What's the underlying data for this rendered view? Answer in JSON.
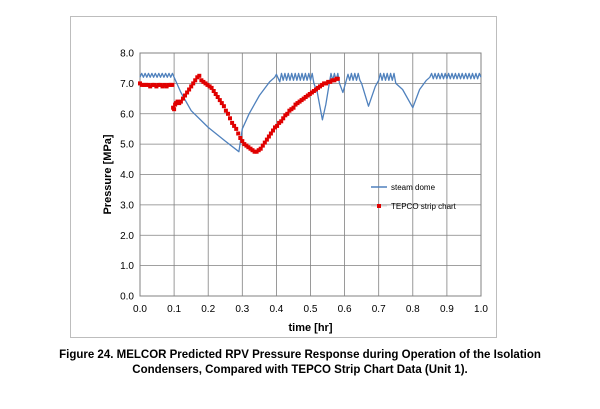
{
  "chart_data": {
    "type": "line",
    "xlabel": "time [hr]",
    "ylabel": "Pressure [MPa]",
    "xlim": [
      0.0,
      1.0
    ],
    "ylim": [
      0.0,
      8.0
    ],
    "xticks": [
      "0.0",
      "0.1",
      "0.2",
      "0.3",
      "0.4",
      "0.5",
      "0.6",
      "0.7",
      "0.8",
      "0.9",
      "1.0"
    ],
    "yticks": [
      "0.0",
      "1.0",
      "2.0",
      "3.0",
      "4.0",
      "5.0",
      "6.0",
      "7.0",
      "8.0"
    ],
    "grid": true,
    "legend_position": "center-right",
    "series": [
      {
        "name": "steam dome",
        "style": "line",
        "color": "#4f81bd",
        "x": [
          0.0,
          0.005,
          0.01,
          0.015,
          0.02,
          0.025,
          0.03,
          0.035,
          0.04,
          0.045,
          0.05,
          0.055,
          0.06,
          0.065,
          0.07,
          0.075,
          0.08,
          0.085,
          0.09,
          0.095,
          0.1,
          0.12,
          0.15,
          0.2,
          0.25,
          0.29,
          0.3,
          0.32,
          0.35,
          0.38,
          0.395,
          0.4,
          0.41,
          0.415,
          0.42,
          0.425,
          0.43,
          0.435,
          0.44,
          0.445,
          0.45,
          0.455,
          0.46,
          0.465,
          0.47,
          0.475,
          0.48,
          0.485,
          0.49,
          0.495,
          0.5,
          0.505,
          0.51,
          0.52,
          0.535,
          0.545,
          0.555,
          0.56,
          0.565,
          0.57,
          0.575,
          0.58,
          0.585,
          0.59,
          0.595,
          0.6,
          0.605,
          0.61,
          0.615,
          0.62,
          0.625,
          0.63,
          0.635,
          0.64,
          0.645,
          0.65,
          0.67,
          0.69,
          0.7,
          0.705,
          0.71,
          0.715,
          0.72,
          0.725,
          0.73,
          0.735,
          0.74,
          0.745,
          0.75,
          0.77,
          0.8,
          0.82,
          0.84,
          0.85,
          0.855,
          0.86,
          0.865,
          0.87,
          0.875,
          0.88,
          0.885,
          0.89,
          0.895,
          0.9,
          0.905,
          0.91,
          0.915,
          0.92,
          0.925,
          0.93,
          0.935,
          0.94,
          0.945,
          0.95,
          0.955,
          0.96,
          0.965,
          0.97,
          0.975,
          0.98,
          0.985,
          0.99,
          0.995,
          1.0
        ],
        "y": [
          7.2,
          7.33,
          7.2,
          7.33,
          7.2,
          7.33,
          7.2,
          7.33,
          7.2,
          7.33,
          7.2,
          7.33,
          7.2,
          7.33,
          7.2,
          7.33,
          7.2,
          7.33,
          7.2,
          7.33,
          7.2,
          6.7,
          6.1,
          5.55,
          5.1,
          4.75,
          5.5,
          6.0,
          6.6,
          7.05,
          7.2,
          7.3,
          7.05,
          7.33,
          7.1,
          7.33,
          7.1,
          7.33,
          7.1,
          7.33,
          7.1,
          7.33,
          7.1,
          7.33,
          7.1,
          7.33,
          7.1,
          7.33,
          7.1,
          7.33,
          7.1,
          7.33,
          7.0,
          6.7,
          5.8,
          6.3,
          7.0,
          7.33,
          7.1,
          7.33,
          7.1,
          7.33,
          7.0,
          6.85,
          6.7,
          6.9,
          7.1,
          7.3,
          7.1,
          7.33,
          7.1,
          7.33,
          7.1,
          7.33,
          7.1,
          7.0,
          6.25,
          6.9,
          7.1,
          7.33,
          7.1,
          7.33,
          7.1,
          7.33,
          7.1,
          7.33,
          7.1,
          7.33,
          7.0,
          6.8,
          6.2,
          6.8,
          7.1,
          7.2,
          7.33,
          7.15,
          7.33,
          7.15,
          7.33,
          7.15,
          7.33,
          7.15,
          7.33,
          7.15,
          7.33,
          7.15,
          7.33,
          7.15,
          7.33,
          7.15,
          7.33,
          7.15,
          7.33,
          7.15,
          7.33,
          7.15,
          7.33,
          7.15,
          7.33,
          7.15,
          7.33,
          7.15,
          7.33,
          7.2
        ]
      },
      {
        "name": "TEPCO strip chart",
        "style": "marker",
        "color": "#e00000",
        "x": [
          0.0,
          0.006,
          0.012,
          0.018,
          0.024,
          0.03,
          0.036,
          0.042,
          0.048,
          0.054,
          0.06,
          0.066,
          0.072,
          0.078,
          0.084,
          0.09,
          0.095,
          0.097,
          0.1,
          0.103,
          0.106,
          0.11,
          0.115,
          0.12,
          0.126,
          0.132,
          0.138,
          0.144,
          0.15,
          0.156,
          0.162,
          0.168,
          0.174,
          0.18,
          0.186,
          0.192,
          0.198,
          0.204,
          0.21,
          0.216,
          0.222,
          0.228,
          0.234,
          0.24,
          0.246,
          0.252,
          0.258,
          0.264,
          0.27,
          0.276,
          0.282,
          0.288,
          0.294,
          0.3,
          0.306,
          0.312,
          0.318,
          0.324,
          0.33,
          0.336,
          0.342,
          0.348,
          0.354,
          0.36,
          0.366,
          0.372,
          0.378,
          0.384,
          0.39,
          0.396,
          0.402,
          0.408,
          0.414,
          0.42,
          0.426,
          0.432,
          0.438,
          0.444,
          0.45,
          0.456,
          0.462,
          0.468,
          0.474,
          0.48,
          0.486,
          0.492,
          0.498,
          0.504,
          0.51,
          0.516,
          0.522,
          0.528,
          0.534,
          0.54,
          0.546,
          0.552,
          0.558,
          0.564,
          0.57,
          0.576,
          0.58
        ],
        "y": [
          7.0,
          6.95,
          6.95,
          6.95,
          6.95,
          6.9,
          6.95,
          6.95,
          6.9,
          6.95,
          6.95,
          6.9,
          6.95,
          6.9,
          6.95,
          6.95,
          6.95,
          6.2,
          6.15,
          6.3,
          6.35,
          6.4,
          6.35,
          6.4,
          6.5,
          6.6,
          6.7,
          6.8,
          6.9,
          7.0,
          7.1,
          7.2,
          7.25,
          7.1,
          7.05,
          7.0,
          6.95,
          6.9,
          6.85,
          6.75,
          6.65,
          6.55,
          6.45,
          6.35,
          6.25,
          6.1,
          6.0,
          5.85,
          5.7,
          5.6,
          5.5,
          5.35,
          5.2,
          5.1,
          5.0,
          4.95,
          4.9,
          4.85,
          4.8,
          4.75,
          4.75,
          4.8,
          4.85,
          4.95,
          5.05,
          5.15,
          5.25,
          5.35,
          5.45,
          5.55,
          5.6,
          5.7,
          5.75,
          5.85,
          5.95,
          6.0,
          6.1,
          6.15,
          6.2,
          6.3,
          6.35,
          6.4,
          6.45,
          6.5,
          6.55,
          6.6,
          6.65,
          6.7,
          6.75,
          6.8,
          6.85,
          6.9,
          6.95,
          7.0,
          7.0,
          7.05,
          7.05,
          7.1,
          7.1,
          7.15,
          7.15
        ]
      }
    ]
  },
  "caption": {
    "line1": "Figure 24.  MELCOR Predicted RPV Pressure Response during Operation of the Isolation",
    "line2": "Condensers, Compared with TEPCO Strip Chart Data (Unit 1)."
  }
}
